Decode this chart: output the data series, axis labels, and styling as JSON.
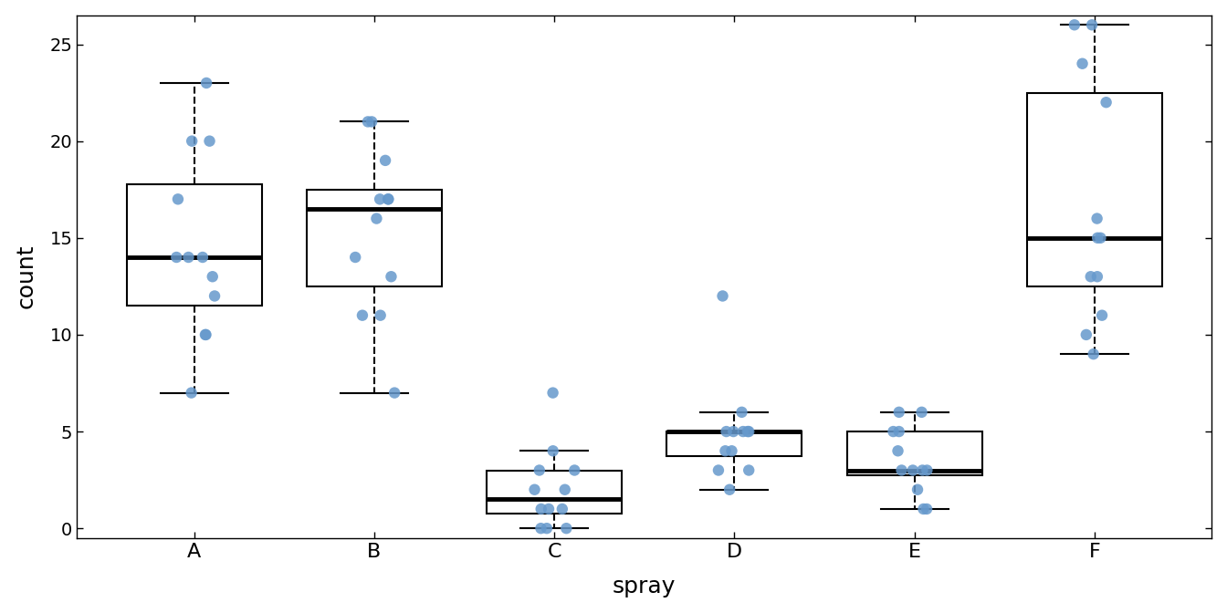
{
  "spray_data": {
    "A": [
      10,
      7,
      20,
      14,
      14,
      12,
      10,
      23,
      17,
      20,
      14,
      13
    ],
    "B": [
      11,
      17,
      21,
      11,
      16,
      14,
      17,
      17,
      19,
      21,
      7,
      13
    ],
    "C": [
      0,
      1,
      7,
      2,
      3,
      1,
      2,
      3,
      0,
      1,
      4,
      0
    ],
    "D": [
      3,
      5,
      12,
      6,
      4,
      3,
      5,
      5,
      5,
      5,
      2,
      4
    ],
    "E": [
      3,
      5,
      3,
      5,
      3,
      6,
      1,
      1,
      3,
      2,
      6,
      4
    ],
    "F": [
      11,
      9,
      15,
      22,
      15,
      16,
      13,
      10,
      26,
      26,
      24,
      13
    ]
  },
  "categories": [
    "A",
    "B",
    "C",
    "D",
    "E",
    "F"
  ],
  "point_color": "#6699CC",
  "box_facecolor": "white",
  "box_edgecolor": "black",
  "median_color": "black",
  "whisker_color": "black",
  "xlabel": "spray",
  "ylabel": "count",
  "ylim": [
    -0.5,
    26.5
  ],
  "yticks": [
    0,
    5,
    10,
    15,
    20,
    25
  ],
  "background_color": "white",
  "point_size": 80,
  "point_alpha": 0.85,
  "linewidth": 1.5,
  "median_linewidth": 3.5,
  "box_width": 0.75,
  "jitter_seed": 42,
  "jitter_amount": 0.12
}
